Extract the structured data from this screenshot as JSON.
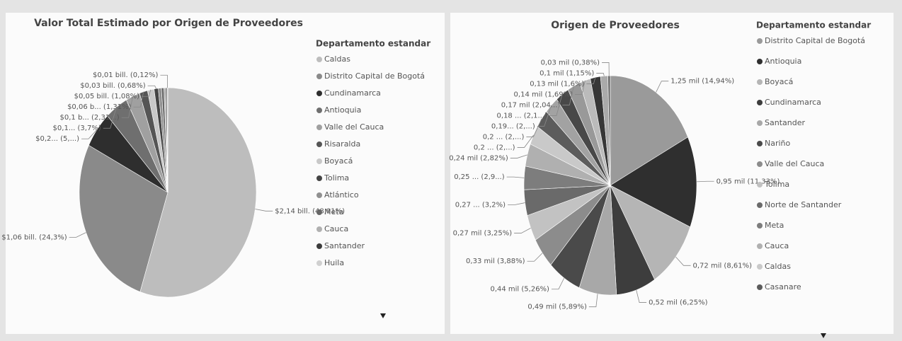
{
  "chart_data": [
    {
      "type": "pie",
      "title": "Valor Total Estimado por Origen de Proveedores",
      "legend_title": "Departamento estandar",
      "categories": [
        "Caldas",
        "Distrito Capital de Bogotá",
        "Cundinamarca",
        "Antioquia",
        "Valle del Cauca",
        "Risaralda",
        "Boyacá",
        "Tolima",
        "Atlántico",
        "Meta",
        "Cauca",
        "Santander",
        "Huila"
      ],
      "values": [
        48.91,
        24.3,
        5,
        3.7,
        2.31,
        1.31,
        1.08,
        0.68,
        0.5,
        0.4,
        0.3,
        0.2,
        0.12
      ],
      "value_labels": [
        "$2,14 bill. (48,91%)",
        "$1,06 bill. (24,3%)",
        "$0,2... (5,...)",
        "$0,1... (3,7%)",
        "$0,1 b... (2,31...)",
        "$0,06 b... (1,31%)",
        "$0,05 bill. (1,08%)",
        "$0,03 bill. (0,68%)",
        null,
        null,
        null,
        null,
        "$0,01 bill. (0,12%)"
      ],
      "colors": [
        "#bdbdbd",
        "#8a8a8a",
        "#2e2e2e",
        "#6f6f6f",
        "#a0a0a0",
        "#555555",
        "#c8c8c8",
        "#444444",
        "#909090",
        "#666666",
        "#b0b0b0",
        "#3c3c3c",
        "#d0d0d0"
      ],
      "legend": "right"
    },
    {
      "type": "pie",
      "title": "Origen de Proveedores",
      "legend_title": "Departamento estandar",
      "categories": [
        "Distrito Capital de Bogotá",
        "Antioquia",
        "Boyacá",
        "Cundinamarca",
        "Santander",
        "Nariño",
        "Valle del Cauca",
        "Tolima",
        "Norte de Santander",
        "Meta",
        "Cauca",
        "Caldas",
        "Casanare",
        null,
        null,
        null,
        null,
        null,
        null,
        null
      ],
      "values": [
        14.94,
        11.33,
        8.61,
        6.25,
        5.89,
        5.26,
        3.88,
        3.25,
        3.2,
        2.9,
        2.82,
        2.4,
        2.3,
        2.2,
        2.1,
        2.04,
        1.69,
        1.6,
        1.15,
        0.38
      ],
      "value_labels": [
        "1,25 mil (14,94%)",
        "0,95 mil (11,33%)",
        "0,72 mil (8,61%)",
        "0,52 mil (6,25%)",
        "0,49 mil (5,89%)",
        "0,44 mil (5,26%)",
        "0,33 mil (3,88%)",
        "0,27 mil (3,25%)",
        "0,27 ... (3,2%)",
        "0,25 ... (2,9...)",
        "0,24 mil (2,82%)",
        "0,2 ... (2,...)",
        "0,2 ... (2,...)",
        "0,19... (2,...)",
        "0,18 ... (2,1...)",
        "0,17 mil (2,04...)",
        "0,14 mil (1,69%)",
        "0,13 mil (1,6%)",
        "0,1 mil (1,15%)",
        "0,03 mil (0,38%)"
      ],
      "colors": [
        "#9a9a9a",
        "#2f2f2f",
        "#b5b5b5",
        "#3d3d3d",
        "#a8a8a8",
        "#4a4a4a",
        "#8c8c8c",
        "#c2c2c2",
        "#6a6a6a",
        "#7d7d7d",
        "#b0b0b0",
        "#c9c9c9",
        "#5c5c5c",
        "#a2a2a2",
        "#484848",
        "#999999",
        "#bbbbbb",
        "#373737",
        "#aaaaaa",
        "#6c6c6c"
      ],
      "legend": "right"
    }
  ]
}
